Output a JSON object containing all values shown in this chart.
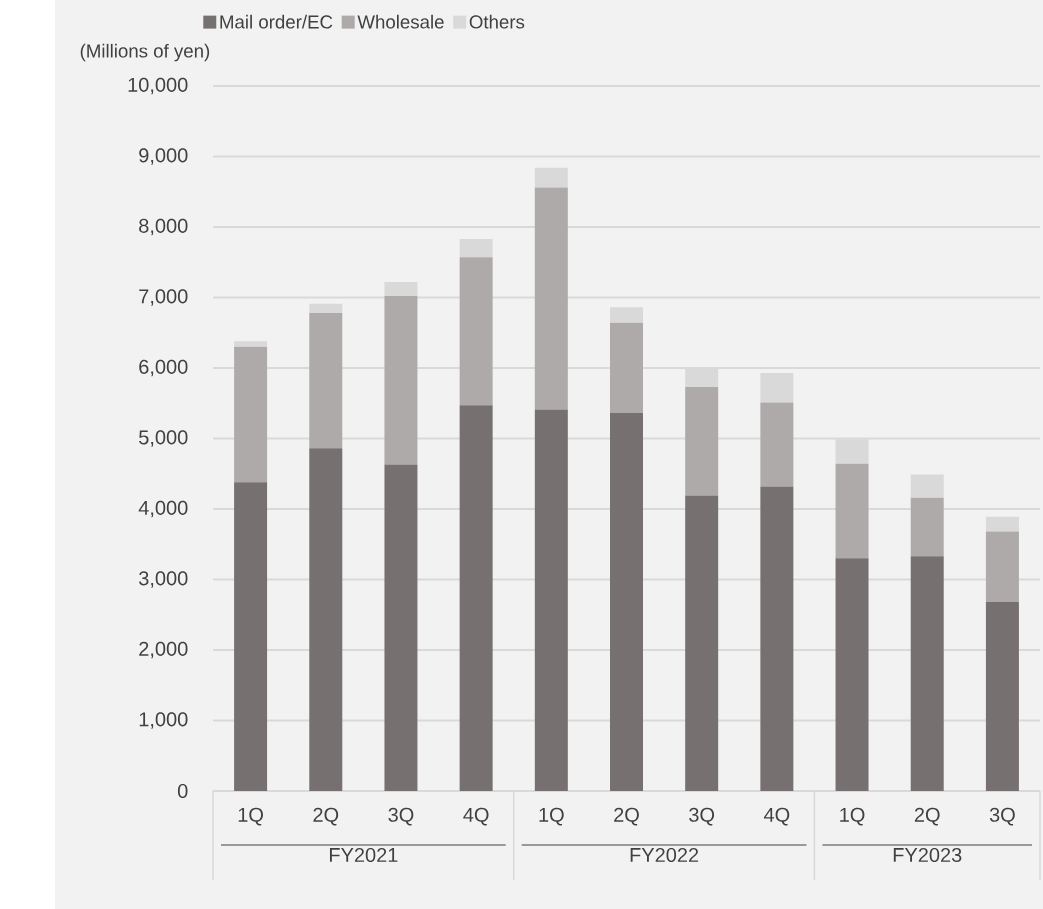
{
  "chart_data": {
    "type": "bar",
    "stacked": true,
    "ylabel": "(Millions of yen)",
    "categories": [
      "1Q",
      "2Q",
      "3Q",
      "4Q",
      "1Q",
      "2Q",
      "3Q",
      "4Q",
      "1Q",
      "2Q",
      "3Q"
    ],
    "series": [
      {
        "name": "Mail order/EC",
        "color": "#767170",
        "values": [
          4380,
          4860,
          4630,
          5470,
          5410,
          5360,
          4190,
          4320,
          3300,
          3330,
          2680
        ]
      },
      {
        "name": "Wholesale",
        "color": "#aeaaa9",
        "values": [
          1920,
          1920,
          2390,
          2100,
          3150,
          1280,
          1540,
          1190,
          1340,
          830,
          1000
        ]
      },
      {
        "name": "Others",
        "color": "#d9d9d9",
        "values": [
          80,
          130,
          200,
          260,
          280,
          220,
          270,
          420,
          350,
          330,
          210
        ]
      }
    ],
    "ylim": [
      0,
      10000
    ],
    "yticks": [
      0,
      {
        "value": 1000,
        "label": "1,000"
      },
      {
        "value": 2000,
        "label": "2,000"
      },
      {
        "value": 3000,
        "label": "3,000"
      },
      {
        "value": 4000,
        "label": "4,000"
      },
      {
        "value": 5000,
        "label": "5,000"
      },
      {
        "value": 6000,
        "label": "6,000"
      },
      {
        "value": 7000,
        "label": "7,000"
      },
      {
        "value": 8000,
        "label": "8,000"
      },
      {
        "value": 9000,
        "label": "9,000"
      },
      {
        "value": 10000,
        "label": "10,000"
      }
    ],
    "grid": "y",
    "legend": "top left",
    "annotations": [
      "FY2021",
      "FY2022",
      "FY2023"
    ]
  }
}
